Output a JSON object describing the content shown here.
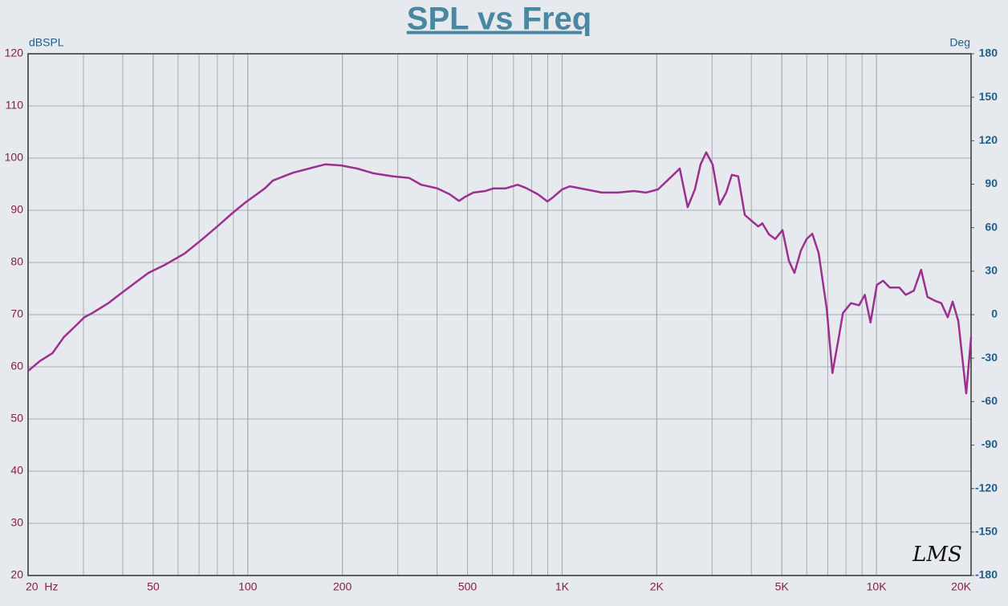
{
  "chart_data": {
    "type": "line",
    "title": "SPL vs Freq",
    "ylabel": "dBSPL",
    "y2label": "Deg",
    "watermark": "LMS",
    "xlog": true,
    "grid": true,
    "xlim": [
      20,
      20000
    ],
    "xticks": [
      {
        "value": 20,
        "label": "20  Hz"
      },
      50,
      100,
      200,
      500,
      {
        "value": 1000,
        "label": "1K"
      },
      {
        "value": 2000,
        "label": "2K"
      },
      {
        "value": 5000,
        "label": "5K"
      },
      {
        "value": 10000,
        "label": "10K"
      },
      {
        "value": 20000,
        "label": "20K"
      }
    ],
    "ylim": [
      20,
      120
    ],
    "yticks": [
      20,
      30,
      40,
      50,
      60,
      70,
      80,
      90,
      100,
      110,
      120
    ],
    "y2lim": [
      -180,
      180
    ],
    "y2ticks": [
      -180,
      -150,
      -120,
      -90,
      -60,
      -30,
      0,
      30,
      60,
      90,
      120,
      150,
      180
    ],
    "x": [
      20,
      21.8,
      23.9,
      26.0,
      28.5,
      30.2,
      32.0,
      36.0,
      38.2,
      42.9,
      48.3,
      54.3,
      62.9,
      70.8,
      79.6,
      89.5,
      97.8,
      106.9,
      113.3,
      120.2,
      139.2,
      156.6,
      176.1,
      198,
      222.8,
      250.5,
      290,
      326,
      356,
      401,
      438,
      470,
      492,
      522,
      570,
      605,
      661,
      722,
      766,
      836,
      898,
      940,
      1000,
      1058,
      1190,
      1338,
      1504,
      1692,
      1849,
      2018,
      2205,
      2367,
      2508,
      2645,
      2757,
      2873,
      3011,
      3171,
      3327,
      3467,
      3632,
      3811,
      4208,
      4335,
      4547,
      4765,
      5024,
      5266,
      5484,
      5750,
      5997,
      6250,
      6548,
      6948,
      7243,
      7591,
      7821,
      8297,
      8803,
      9180,
      9574,
      10030,
      10500,
      11020,
      11820,
      12390,
      13150,
      13870,
      14530,
      15420,
      16080,
      16850,
      17470,
      18210,
      19300,
      20000
    ],
    "series": [
      {
        "name": "SPL",
        "color": "#9b3090",
        "values": [
          59.2,
          61.1,
          62.6,
          65.7,
          68,
          69.5,
          70.3,
          72.2,
          73.4,
          75.7,
          78.0,
          79.5,
          81.7,
          84.2,
          86.8,
          89.5,
          91.4,
          93.1,
          94.2,
          95.7,
          97.2,
          98.0,
          98.8,
          98.6,
          98.0,
          97.1,
          96.5,
          96.2,
          94.9,
          94.2,
          93.1,
          91.8,
          92.6,
          93.4,
          93.7,
          94.2,
          94.2,
          94.9,
          94.3,
          93.1,
          91.7,
          92.6,
          94.0,
          94.6,
          94.0,
          93.4,
          93.4,
          93.7,
          93.4,
          94.0,
          96.2,
          98.0,
          90.6,
          94.0,
          98.8,
          101.1,
          98.8,
          91.1,
          93.4,
          96.8,
          96.5,
          89.1,
          86.9,
          87.5,
          85.4,
          84.5,
          86.2,
          80.3,
          78.0,
          82.3,
          84.5,
          85.5,
          81.8,
          71.1,
          58.8,
          65.7,
          70.3,
          72.2,
          71.8,
          73.8,
          68.5,
          75.7,
          76.5,
          75.2,
          75.2,
          73.8,
          74.6,
          78.6,
          73.4,
          72.6,
          72.2,
          69.5,
          72.5,
          68.8,
          54.9,
          65.7
        ]
      }
    ]
  }
}
